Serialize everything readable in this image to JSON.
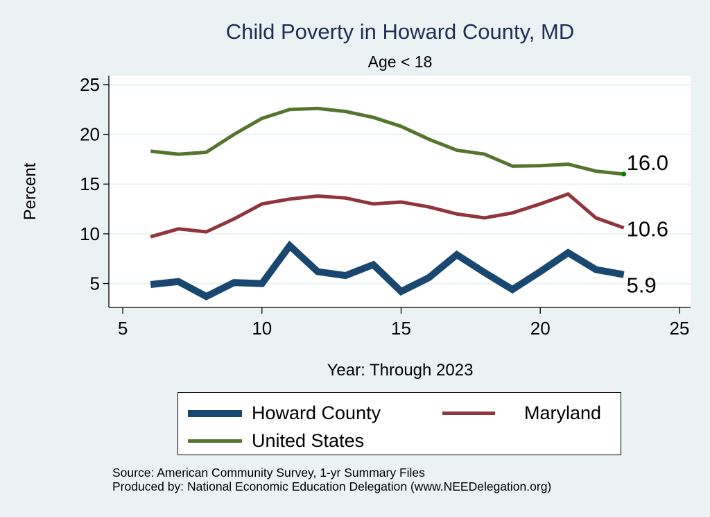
{
  "chart_data": {
    "type": "line",
    "title": "Child Poverty in Howard County, MD",
    "subtitle": "Age < 18",
    "xlabel": "Year: Through 2023",
    "ylabel": "Percent",
    "xlim": [
      4.5,
      25.4
    ],
    "ylim": [
      2.6,
      25.9
    ],
    "xticks": [
      5,
      10,
      15,
      20,
      25
    ],
    "yticks": [
      5,
      10,
      15,
      20,
      25
    ],
    "grid": "horizontal",
    "legend_position": "bottom",
    "x": [
      6,
      7,
      8,
      9,
      10,
      11,
      12,
      13,
      14,
      15,
      16,
      17,
      18,
      19,
      20,
      21,
      22,
      23
    ],
    "series": [
      {
        "name": "Howard County",
        "color": "#1a476f",
        "values": [
          4.9,
          5.2,
          3.7,
          5.1,
          5.0,
          8.8,
          6.2,
          5.8,
          6.9,
          4.2,
          5.6,
          7.9,
          6.1,
          4.4,
          6.2,
          8.1,
          6.4,
          5.9
        ],
        "end_label": "5.9"
      },
      {
        "name": "Maryland",
        "color": "#90353b",
        "values": [
          9.7,
          10.5,
          10.2,
          11.5,
          13.0,
          13.5,
          13.8,
          13.6,
          13.0,
          13.2,
          12.7,
          12.0,
          11.6,
          12.1,
          13.0,
          14.0,
          11.6,
          10.6
        ],
        "end_label": "10.6"
      },
      {
        "name": "United States",
        "color": "#55752f",
        "values": [
          18.3,
          18.0,
          18.2,
          20.0,
          21.6,
          22.5,
          22.6,
          22.3,
          21.7,
          20.8,
          19.5,
          18.4,
          18.0,
          16.8,
          16.85,
          17.0,
          16.3,
          16.0
        ],
        "end_label": "16.0"
      }
    ],
    "legend": [
      {
        "label": "Howard County",
        "color": "#1a476f"
      },
      {
        "label": "Maryland",
        "color": "#90353b"
      },
      {
        "label": "United States",
        "color": "#55752f"
      }
    ],
    "notes": [
      "Source: American Community Survey, 1-yr Summary Files",
      "Produced by: National Economic Education Delegation (www.NEEDelegation.org)"
    ]
  }
}
